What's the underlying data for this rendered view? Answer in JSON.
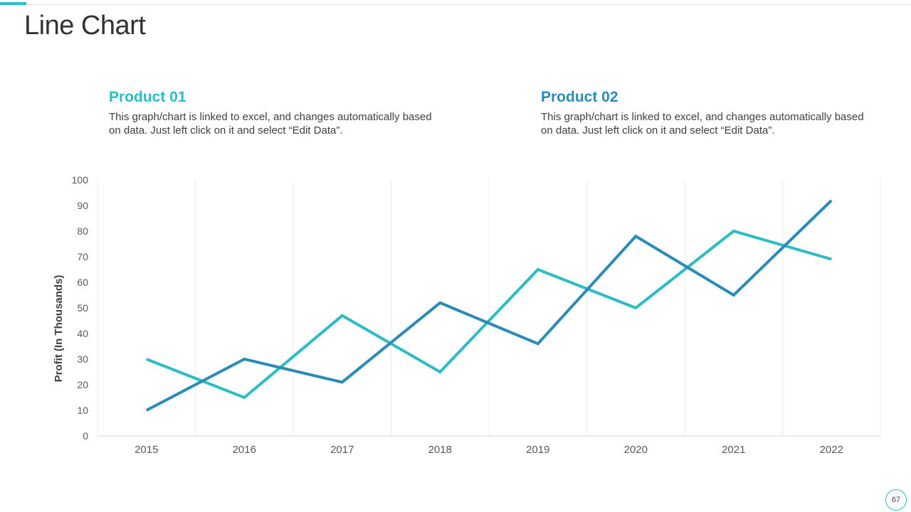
{
  "page": {
    "title": "Line Chart",
    "page_number": "67",
    "accent_color": "#2cbcc5"
  },
  "products": [
    {
      "title": "Product 01",
      "description": "This graph/chart is linked to excel, and changes automatically based on data. Just left click on it and select “Edit Data”.",
      "color": "#2cbcc5"
    },
    {
      "title": "Product 02",
      "description": "This graph/chart is linked to excel, and changes automatically based on data. Just left click on it and select “Edit Data”.",
      "color": "#2b8bb8"
    }
  ],
  "chart_data": {
    "type": "line",
    "categories": [
      "2015",
      "2016",
      "2017",
      "2018",
      "2019",
      "2020",
      "2021",
      "2022"
    ],
    "series": [
      {
        "name": "Product 01",
        "color": "#2cbcc5",
        "values": [
          30,
          15,
          47,
          25,
          65,
          50,
          80,
          69
        ]
      },
      {
        "name": "Product 02",
        "color": "#2b8bb8",
        "values": [
          10,
          30,
          21,
          52,
          36,
          78,
          55,
          92
        ]
      }
    ],
    "title": "",
    "xlabel": "",
    "ylabel": "Profit (In Thousands)",
    "ylim": [
      0,
      100
    ],
    "yticks": [
      0,
      10,
      20,
      30,
      40,
      50,
      60,
      70,
      80,
      90,
      100
    ],
    "grid": "vertical category separators",
    "legend": "none"
  }
}
